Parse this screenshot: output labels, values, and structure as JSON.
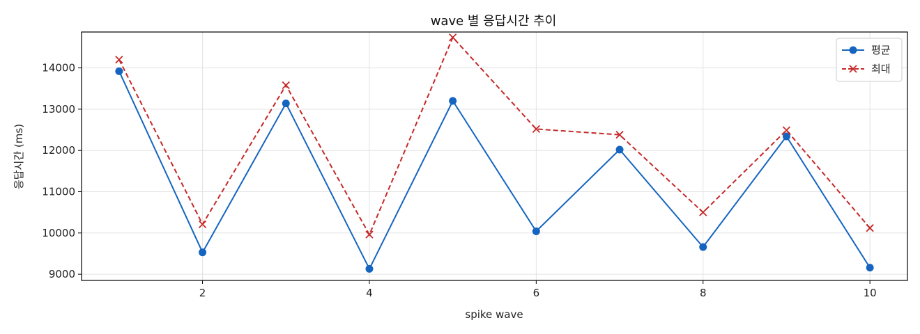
{
  "chart_data": {
    "type": "line",
    "title": "wave 별 응답시간 추이",
    "xlabel": "spike wave",
    "ylabel": "응답시간 (ms)",
    "x": [
      1,
      2,
      3,
      4,
      5,
      6,
      7,
      8,
      9,
      10
    ],
    "xlim": [
      0.55,
      10.45
    ],
    "ylim": [
      8850,
      14870
    ],
    "x_ticks": [
      2,
      4,
      6,
      8,
      10
    ],
    "y_ticks": [
      9000,
      10000,
      11000,
      12000,
      13000,
      14000
    ],
    "grid": true,
    "legend_position": "top-right",
    "series": [
      {
        "name": "평균",
        "color": "#1565c0",
        "marker": "circle",
        "line_style": "solid",
        "values": [
          13920,
          9530,
          13140,
          9130,
          13200,
          10040,
          12020,
          9660,
          12340,
          9160
        ]
      },
      {
        "name": "최대",
        "color": "#c62828",
        "marker": "x",
        "line_style": "dashed",
        "values": [
          14200,
          10210,
          13580,
          9960,
          14740,
          12520,
          12380,
          10500,
          12490,
          10120
        ]
      }
    ]
  }
}
